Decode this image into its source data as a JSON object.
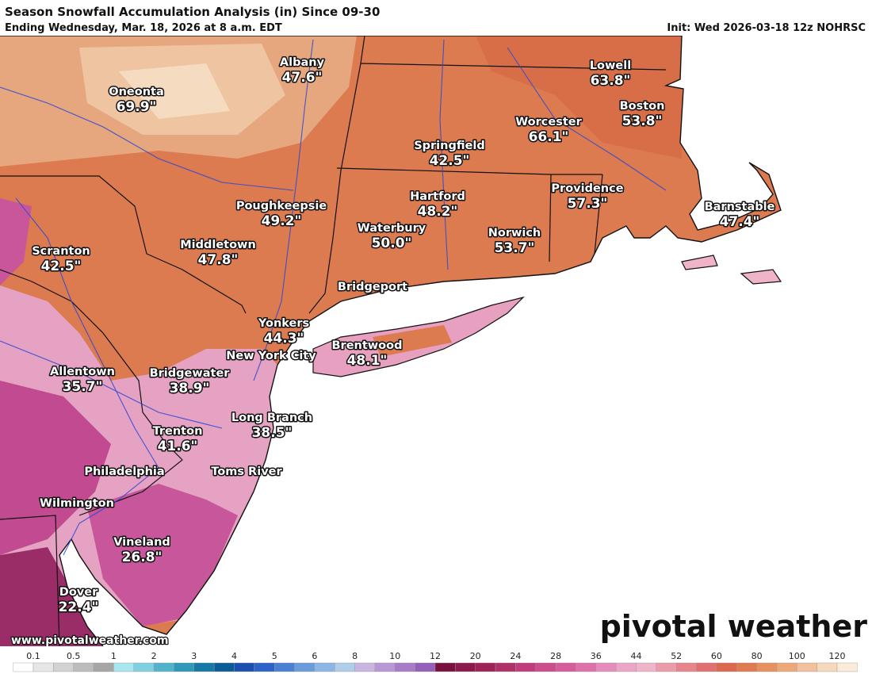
{
  "header": {
    "title": "Season Snowfall Accumulation Analysis (in) Since 09-30",
    "subtitle": "Ending Wednesday, Mar. 18, 2026 at 8 a.m. EDT",
    "init": "Init: Wed 2026-03-18 12z NOHRSC"
  },
  "cities": [
    {
      "name": "Albany",
      "value": "47.6\""
    },
    {
      "name": "Oneonta",
      "value": "69.9\""
    },
    {
      "name": "Lowell",
      "value": "63.8\""
    },
    {
      "name": "Boston",
      "value": "53.8\""
    },
    {
      "name": "Worcester",
      "value": "66.1\""
    },
    {
      "name": "Springfield",
      "value": "42.5\""
    },
    {
      "name": "Providence",
      "value": "57.3\""
    },
    {
      "name": "Hartford",
      "value": "48.2\""
    },
    {
      "name": "Poughkeepsie",
      "value": "49.2\""
    },
    {
      "name": "Barnstable",
      "value": "47.4\""
    },
    {
      "name": "Waterbury",
      "value": "50.0\""
    },
    {
      "name": "Norwich",
      "value": "53.7\""
    },
    {
      "name": "Middletown",
      "value": "47.8\""
    },
    {
      "name": "Scranton",
      "value": "42.5\""
    },
    {
      "name": "Bridgeport"
    },
    {
      "name": "Yonkers",
      "value": "44.3\""
    },
    {
      "name": "Brentwood",
      "value": "48.1\""
    },
    {
      "name": "New York City"
    },
    {
      "name": "Allentown",
      "value": "35.7\""
    },
    {
      "name": "Bridgewater",
      "value": "38.9\""
    },
    {
      "name": "Long Branch",
      "value": "38.5\""
    },
    {
      "name": "Trenton",
      "value": "41.6\""
    },
    {
      "name": "Toms River"
    },
    {
      "name": "Philadelphia"
    },
    {
      "name": "Wilmington"
    },
    {
      "name": "Vineland",
      "value": "26.8\""
    },
    {
      "name": "Dover",
      "value": "22.4\""
    }
  ],
  "footer": {
    "website": "www.pivotalweather.com",
    "logo": "pivotal weather"
  },
  "colorbar": {
    "levels": [
      0.1,
      0.5,
      1,
      2,
      3,
      4,
      5,
      6,
      8,
      10,
      12,
      20,
      24,
      28,
      36,
      44,
      52,
      60,
      80,
      100,
      120
    ],
    "colors": [
      "#ffffff",
      "#e6e6e6",
      "#d2d2d2",
      "#bcbcbc",
      "#a6a6a6",
      "#a8e6f0",
      "#7fd0e0",
      "#52b4cc",
      "#3098b8",
      "#1678a4",
      "#0a5c98",
      "#1a4fb0",
      "#2c63c8",
      "#4a80d4",
      "#6a9cdc",
      "#8cb6e4",
      "#b0cdea",
      "#c9b6e0",
      "#b898d4",
      "#a87cc8",
      "#9460b8",
      "#7a1040",
      "#8c1a4c",
      "#9e2458",
      "#b03068",
      "#c03c7c",
      "#cc4c8c",
      "#d65c9c",
      "#de70ac",
      "#e68cbc",
      "#eca4c8",
      "#f0b4c8",
      "#ec9ca8",
      "#e8848c",
      "#e27070",
      "#dc6850",
      "#e07a50",
      "#e89060",
      "#eca878",
      "#f2c09c",
      "#f6d8bc",
      "#faecd8"
    ]
  }
}
